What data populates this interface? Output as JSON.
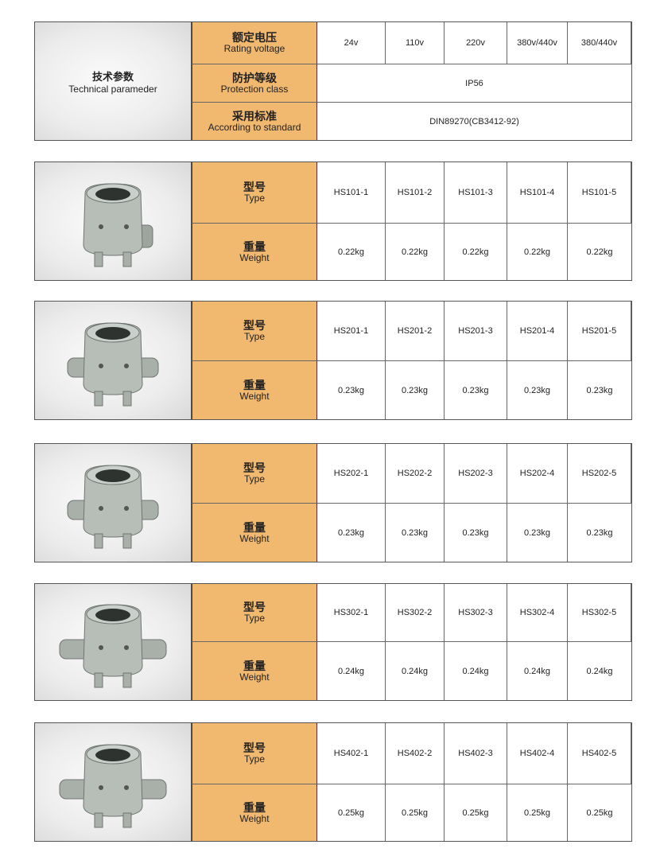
{
  "technical": {
    "title_zh": "技术参数",
    "title_en": "Technical parameder",
    "rows": [
      {
        "label_zh": "额定电压",
        "label_en": "Rating voltage",
        "values": [
          "24v",
          "110v",
          "220v",
          "380v/440v",
          "380/440v"
        ]
      },
      {
        "label_zh": "防护等级",
        "label_en": "Protection class",
        "value": "IP56"
      },
      {
        "label_zh": "采用标准",
        "label_en": "According to standard",
        "value": "DIN89270(CB3412-92)"
      }
    ]
  },
  "labels": {
    "type_zh": "型号",
    "type_en": "Type",
    "weight_zh": "重量",
    "weight_en": "Weight"
  },
  "products": [
    {
      "types": [
        "HS101-1",
        "HS101-2",
        "HS101-3",
        "HS101-4",
        "HS101-5"
      ],
      "weights": [
        "0.22kg",
        "0.22kg",
        "0.22kg",
        "0.22kg",
        "0.22kg"
      ]
    },
    {
      "types": [
        "HS201-1",
        "HS201-2",
        "HS201-3",
        "HS201-4",
        "HS201-5"
      ],
      "weights": [
        "0.23kg",
        "0.23kg",
        "0.23kg",
        "0.23kg",
        "0.23kg"
      ]
    },
    {
      "types": [
        "HS202-1",
        "HS202-2",
        "HS202-3",
        "HS202-4",
        "HS202-5"
      ],
      "weights": [
        "0.23kg",
        "0.23kg",
        "0.23kg",
        "0.23kg",
        "0.23kg"
      ]
    },
    {
      "types": [
        "HS302-1",
        "HS302-2",
        "HS302-3",
        "HS302-4",
        "HS302-5"
      ],
      "weights": [
        "0.24kg",
        "0.24kg",
        "0.24kg",
        "0.24kg",
        "0.24kg"
      ]
    },
    {
      "types": [
        "HS402-1",
        "HS402-2",
        "HS402-3",
        "HS402-4",
        "HS402-5"
      ],
      "weights": [
        "0.25kg",
        "0.25kg",
        "0.25kg",
        "0.25kg",
        "0.25kg"
      ]
    }
  ],
  "colors": {
    "label_bg": "#f1b86f",
    "border": "#555555"
  }
}
